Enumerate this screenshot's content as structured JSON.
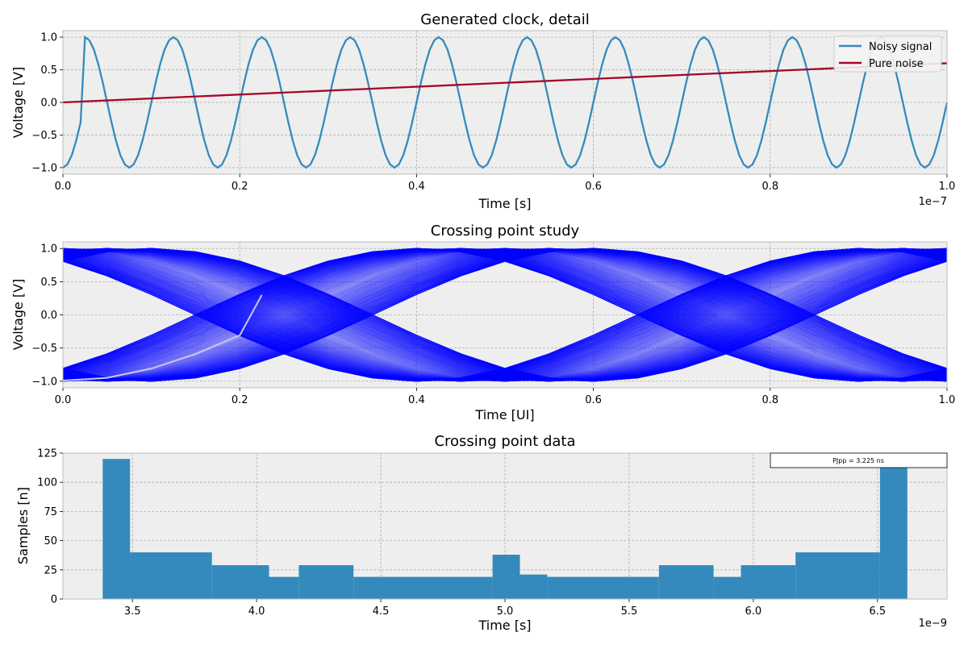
{
  "chart_data": [
    {
      "type": "line",
      "title": "Generated clock, detail",
      "xlabel": "Time [s]",
      "ylabel": "Voltage [V]",
      "x_scale_label": "1e−7",
      "xlim": [
        0,
        1.0
      ],
      "ylim": [
        -1.1,
        1.1
      ],
      "xticks": [
        0.0,
        0.2,
        0.4,
        0.6,
        0.8,
        1.0
      ],
      "yticks": [
        -1.0,
        -0.5,
        0.0,
        0.5,
        1.0
      ],
      "grid": true,
      "legend_position": "top-right",
      "series": [
        {
          "name": "Noisy signal",
          "color": "#348abd",
          "period": 0.1,
          "phase_jump_x": 0.025
        },
        {
          "name": "Pure noise",
          "color": "#a60628",
          "x": [
            0,
            1.0
          ],
          "y": [
            0,
            0.6
          ]
        }
      ]
    },
    {
      "type": "line",
      "title": "Crossing point study",
      "xlabel": "Time [UI]",
      "ylabel": "Voltage [V]",
      "xlim": [
        0,
        1.0
      ],
      "ylim": [
        -1.1,
        1.1
      ],
      "xticks": [
        0.0,
        0.2,
        0.4,
        0.6,
        0.8,
        1.0
      ],
      "yticks": [
        -1.0,
        -0.5,
        0.0,
        0.5,
        1.0
      ],
      "grid": true,
      "color": "#0000ff",
      "trace_count": 60,
      "crossing_points": [
        0.25,
        0.75
      ],
      "faint_trace": {
        "x": [
          0,
          0.05,
          0.1,
          0.15,
          0.2,
          0.225
        ],
        "y": [
          -0.99,
          -0.95,
          -0.81,
          -0.59,
          -0.31,
          0.3
        ]
      }
    },
    {
      "type": "bar",
      "title": "Crossing point data",
      "xlabel": "Time [s]",
      "ylabel": "Samples [n]",
      "x_scale_label": "1e−9",
      "xlim": [
        3.22,
        6.78
      ],
      "ylim": [
        0,
        125
      ],
      "xticks": [
        3.5,
        4.0,
        4.5,
        5.0,
        5.5,
        6.0,
        6.5
      ],
      "yticks": [
        0,
        25,
        50,
        75,
        100,
        125
      ],
      "grid": true,
      "color": "#348abd",
      "bins": [
        {
          "x0": 3.38,
          "x1": 3.49,
          "value": 120
        },
        {
          "x0": 3.49,
          "x1": 3.82,
          "value": 40
        },
        {
          "x0": 3.82,
          "x1": 4.05,
          "value": 29
        },
        {
          "x0": 4.05,
          "x1": 4.17,
          "value": 19
        },
        {
          "x0": 4.17,
          "x1": 4.39,
          "value": 29
        },
        {
          "x0": 4.39,
          "x1": 4.95,
          "value": 19
        },
        {
          "x0": 4.95,
          "x1": 5.06,
          "value": 38
        },
        {
          "x0": 5.06,
          "x1": 5.17,
          "value": 21
        },
        {
          "x0": 5.17,
          "x1": 5.62,
          "value": 19
        },
        {
          "x0": 5.62,
          "x1": 5.84,
          "value": 29
        },
        {
          "x0": 5.84,
          "x1": 5.95,
          "value": 19
        },
        {
          "x0": 5.95,
          "x1": 6.17,
          "value": 29
        },
        {
          "x0": 6.17,
          "x1": 6.51,
          "value": 40
        },
        {
          "x0": 6.51,
          "x1": 6.62,
          "value": 113
        }
      ],
      "annotation": "PJpp = 3.225 ns"
    }
  ]
}
